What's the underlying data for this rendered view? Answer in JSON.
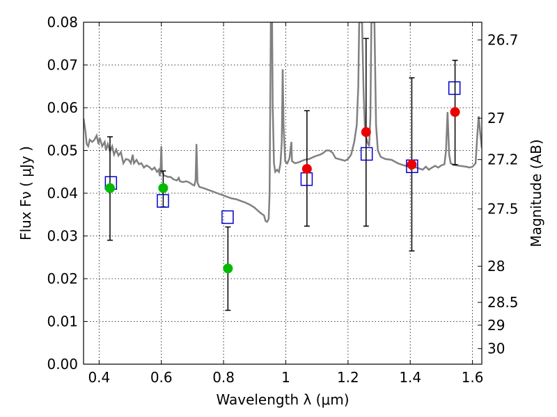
{
  "chart_data": {
    "type": "scatter",
    "title": "",
    "xlabel": "Wavelength  λ (μm)",
    "ylabel": "Flux  Fν  ( μJy )",
    "ylabel_right": "Magnitude (AB)",
    "xlim": [
      0.35,
      1.63
    ],
    "ylim": [
      0.0,
      0.08
    ],
    "grid": true,
    "x_ticks": [
      {
        "value": 0.4,
        "label": "0.4"
      },
      {
        "value": 0.6,
        "label": "0.6"
      },
      {
        "value": 0.8,
        "label": "0.8"
      },
      {
        "value": 1.0,
        "label": "1"
      },
      {
        "value": 1.2,
        "label": "1.2"
      },
      {
        "value": 1.4,
        "label": "1.4"
      },
      {
        "value": 1.6,
        "label": "1.6"
      }
    ],
    "y_ticks": [
      {
        "value": 0.0,
        "label": "0.00"
      },
      {
        "value": 0.01,
        "label": "0.01"
      },
      {
        "value": 0.02,
        "label": "0.02"
      },
      {
        "value": 0.03,
        "label": "0.03"
      },
      {
        "value": 0.04,
        "label": "0.04"
      },
      {
        "value": 0.05,
        "label": "0.05"
      },
      {
        "value": 0.06,
        "label": "0.06"
      },
      {
        "value": 0.07,
        "label": "0.07"
      },
      {
        "value": 0.08,
        "label": "0.08"
      }
    ],
    "right_ticks": [
      {
        "value": 26.7,
        "label": "26.7"
      },
      {
        "value": 27.0,
        "label": "27"
      },
      {
        "value": 27.2,
        "label": "27.2"
      },
      {
        "value": 27.5,
        "label": "27.5"
      },
      {
        "value": 28.0,
        "label": "28"
      },
      {
        "value": 28.5,
        "label": "28.5"
      },
      {
        "value": 29.0,
        "label": "29"
      },
      {
        "value": 30.0,
        "label": "30"
      }
    ],
    "colors": {
      "spectrum": "#808080",
      "green": "#00bb00",
      "red": "#ee0000",
      "square": "#0000cc",
      "errorbar": "#000000"
    },
    "spectrum": [
      [
        0.35,
        0.0575
      ],
      [
        0.356,
        0.0545
      ],
      [
        0.36,
        0.0515
      ],
      [
        0.365,
        0.051
      ],
      [
        0.37,
        0.0525
      ],
      [
        0.378,
        0.052
      ],
      [
        0.385,
        0.0525
      ],
      [
        0.392,
        0.0535
      ],
      [
        0.398,
        0.0515
      ],
      [
        0.402,
        0.053
      ],
      [
        0.41,
        0.051
      ],
      [
        0.418,
        0.052
      ],
      [
        0.422,
        0.05
      ],
      [
        0.428,
        0.0515
      ],
      [
        0.435,
        0.0498
      ],
      [
        0.442,
        0.051
      ],
      [
        0.448,
        0.049
      ],
      [
        0.455,
        0.0502
      ],
      [
        0.462,
        0.0488
      ],
      [
        0.47,
        0.0496
      ],
      [
        0.478,
        0.047
      ],
      [
        0.486,
        0.048
      ],
      [
        0.495,
        0.0478
      ],
      [
        0.502,
        0.047
      ],
      [
        0.508,
        0.049
      ],
      [
        0.512,
        0.047
      ],
      [
        0.52,
        0.0478
      ],
      [
        0.528,
        0.0468
      ],
      [
        0.536,
        0.047
      ],
      [
        0.544,
        0.046
      ],
      [
        0.552,
        0.0465
      ],
      [
        0.56,
        0.0462
      ],
      [
        0.57,
        0.0455
      ],
      [
        0.578,
        0.046
      ],
      [
        0.586,
        0.045
      ],
      [
        0.592,
        0.0455
      ],
      [
        0.595,
        0.044
      ],
      [
        0.598,
        0.0465
      ],
      [
        0.6,
        0.051
      ],
      [
        0.602,
        0.045
      ],
      [
        0.608,
        0.0442
      ],
      [
        0.615,
        0.044
      ],
      [
        0.622,
        0.0438
      ],
      [
        0.63,
        0.0438
      ],
      [
        0.64,
        0.0432
      ],
      [
        0.65,
        0.043
      ],
      [
        0.656,
        0.0436
      ],
      [
        0.66,
        0.0428
      ],
      [
        0.67,
        0.0426
      ],
      [
        0.68,
        0.0428
      ],
      [
        0.69,
        0.0425
      ],
      [
        0.7,
        0.042
      ],
      [
        0.706,
        0.0418
      ],
      [
        0.71,
        0.043
      ],
      [
        0.713,
        0.0515
      ],
      [
        0.716,
        0.0425
      ],
      [
        0.722,
        0.0415
      ],
      [
        0.735,
        0.0412
      ],
      [
        0.75,
        0.0408
      ],
      [
        0.765,
        0.0404
      ],
      [
        0.78,
        0.04
      ],
      [
        0.795,
        0.0396
      ],
      [
        0.81,
        0.0392
      ],
      [
        0.825,
        0.0388
      ],
      [
        0.84,
        0.0386
      ],
      [
        0.855,
        0.0382
      ],
      [
        0.87,
        0.0378
      ],
      [
        0.885,
        0.0373
      ],
      [
        0.9,
        0.0366
      ],
      [
        0.912,
        0.0358
      ],
      [
        0.922,
        0.0352
      ],
      [
        0.93,
        0.0348
      ],
      [
        0.935,
        0.0335
      ],
      [
        0.94,
        0.0333
      ],
      [
        0.945,
        0.034
      ],
      [
        0.948,
        0.04
      ],
      [
        0.95,
        0.06
      ],
      [
        0.952,
        0.08
      ],
      [
        0.956,
        0.08
      ],
      [
        0.958,
        0.06
      ],
      [
        0.962,
        0.047
      ],
      [
        0.966,
        0.045
      ],
      [
        0.972,
        0.0455
      ],
      [
        0.978,
        0.045
      ],
      [
        0.983,
        0.047
      ],
      [
        0.987,
        0.052
      ],
      [
        0.99,
        0.069
      ],
      [
        0.993,
        0.056
      ],
      [
        0.998,
        0.0475
      ],
      [
        1.005,
        0.047
      ],
      [
        1.012,
        0.0482
      ],
      [
        1.018,
        0.052
      ],
      [
        1.02,
        0.0475
      ],
      [
        1.03,
        0.047
      ],
      [
        1.04,
        0.0472
      ],
      [
        1.05,
        0.0475
      ],
      [
        1.06,
        0.0478
      ],
      [
        1.075,
        0.048
      ],
      [
        1.09,
        0.0485
      ],
      [
        1.1,
        0.0488
      ],
      [
        1.11,
        0.049
      ],
      [
        1.12,
        0.0494
      ],
      [
        1.13,
        0.05
      ],
      [
        1.14,
        0.05
      ],
      [
        1.15,
        0.0495
      ],
      [
        1.16,
        0.0482
      ],
      [
        1.17,
        0.048
      ],
      [
        1.18,
        0.0478
      ],
      [
        1.19,
        0.0476
      ],
      [
        1.2,
        0.048
      ],
      [
        1.21,
        0.049
      ],
      [
        1.22,
        0.052
      ],
      [
        1.228,
        0.056
      ],
      [
        1.233,
        0.065
      ],
      [
        1.236,
        0.08
      ],
      [
        1.245,
        0.08
      ],
      [
        1.25,
        0.064
      ],
      [
        1.255,
        0.054
      ],
      [
        1.262,
        0.052
      ],
      [
        1.268,
        0.051
      ],
      [
        1.272,
        0.058
      ],
      [
        1.275,
        0.08
      ],
      [
        1.285,
        0.08
      ],
      [
        1.29,
        0.056
      ],
      [
        1.296,
        0.05
      ],
      [
        1.305,
        0.0485
      ],
      [
        1.32,
        0.048
      ],
      [
        1.34,
        0.0478
      ],
      [
        1.36,
        0.047
      ],
      [
        1.38,
        0.0465
      ],
      [
        1.4,
        0.0462
      ],
      [
        1.42,
        0.046
      ],
      [
        1.44,
        0.0455
      ],
      [
        1.45,
        0.0462
      ],
      [
        1.46,
        0.0455
      ],
      [
        1.47,
        0.046
      ],
      [
        1.48,
        0.0464
      ],
      [
        1.49,
        0.046
      ],
      [
        1.5,
        0.0465
      ],
      [
        1.51,
        0.0468
      ],
      [
        1.515,
        0.05
      ],
      [
        1.52,
        0.059
      ],
      [
        1.525,
        0.049
      ],
      [
        1.53,
        0.047
      ],
      [
        1.54,
        0.0466
      ],
      [
        1.55,
        0.0465
      ],
      [
        1.56,
        0.0464
      ],
      [
        1.57,
        0.0463
      ],
      [
        1.58,
        0.0462
      ],
      [
        1.59,
        0.046
      ],
      [
        1.6,
        0.0462
      ],
      [
        1.61,
        0.047
      ],
      [
        1.615,
        0.053
      ],
      [
        1.62,
        0.058
      ],
      [
        1.625,
        0.054
      ],
      [
        1.63,
        0.0505
      ]
    ],
    "photometry": [
      {
        "x": 0.435,
        "y": 0.0412,
        "err_low": 0.029,
        "err_high": 0.0532,
        "color": "green"
      },
      {
        "x": 0.606,
        "y": 0.0412,
        "err_low": 0.0368,
        "err_high": 0.0452,
        "color": "green"
      },
      {
        "x": 0.814,
        "y": 0.0224,
        "err_low": 0.0126,
        "err_high": 0.0321,
        "color": "green"
      },
      {
        "x": 1.068,
        "y": 0.0457,
        "err_low": 0.0323,
        "err_high": 0.0593,
        "color": "red"
      },
      {
        "x": 1.258,
        "y": 0.0543,
        "err_low": 0.0323,
        "err_high": 0.0762,
        "color": "red"
      },
      {
        "x": 1.405,
        "y": 0.0467,
        "err_low": 0.0265,
        "err_high": 0.067,
        "color": "red"
      },
      {
        "x": 1.544,
        "y": 0.059,
        "err_low": 0.0467,
        "err_high": 0.0711,
        "color": "red"
      }
    ],
    "model_points": [
      {
        "x": 0.438,
        "y": 0.0424
      },
      {
        "x": 0.605,
        "y": 0.0382
      },
      {
        "x": 0.813,
        "y": 0.0344
      },
      {
        "x": 1.067,
        "y": 0.0433
      },
      {
        "x": 1.26,
        "y": 0.0492
      },
      {
        "x": 1.406,
        "y": 0.0463
      },
      {
        "x": 1.542,
        "y": 0.0646
      }
    ]
  }
}
